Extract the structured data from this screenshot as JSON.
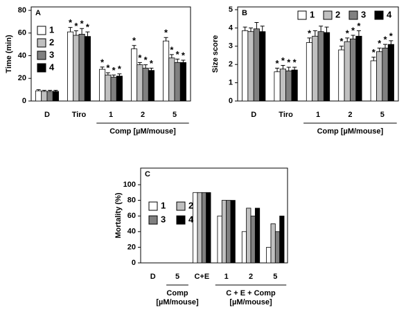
{
  "chart_data": [
    {
      "type": "bar",
      "title": "A",
      "ylabel": "Time (min)",
      "categories": [
        "D",
        "Tiro",
        "1",
        "2",
        "5"
      ],
      "group_labels": [
        [
          "Comp [µM/mouse]"
        ]
      ],
      "ylim": [
        0,
        80
      ],
      "yticks": [
        0,
        20,
        40,
        60,
        80
      ],
      "series": [
        {
          "name": "1",
          "color": "#ffffff",
          "values": [
            9,
            61,
            28,
            46,
            53
          ],
          "errors": [
            1,
            4,
            2,
            3,
            3
          ],
          "significance": [
            null,
            "*",
            "*",
            "*",
            "*"
          ]
        },
        {
          "name": "2",
          "color": "#c0c0c0",
          "values": [
            8.5,
            58,
            23,
            32,
            38
          ],
          "errors": [
            1,
            4,
            2,
            2,
            3
          ],
          "significance": [
            null,
            "*",
            "*",
            "*",
            "*"
          ]
        },
        {
          "name": "3",
          "color": "#808080",
          "values": [
            8.5,
            59,
            21,
            29,
            34
          ],
          "errors": [
            1,
            5,
            2,
            3,
            3
          ],
          "significance": [
            null,
            "*",
            "*",
            "*",
            "*"
          ]
        },
        {
          "name": "4",
          "color": "#000000",
          "values": [
            8.5,
            57,
            22,
            27,
            34
          ],
          "errors": [
            1,
            4,
            2,
            2,
            2
          ],
          "significance": [
            null,
            "*",
            "*",
            "*",
            "*"
          ]
        }
      ]
    },
    {
      "type": "bar",
      "title": "B",
      "ylabel": "Size score",
      "categories": [
        "D",
        "Tiro",
        "1",
        "2",
        "5"
      ],
      "group_labels": [
        [
          "Comp [µM/mouse]"
        ]
      ],
      "ylim": [
        0,
        5
      ],
      "yticks": [
        0,
        1,
        2,
        3,
        4,
        5
      ],
      "series": [
        {
          "name": "1",
          "color": "#ffffff",
          "values": [
            3.85,
            1.6,
            3.2,
            2.8,
            2.2
          ],
          "errors": [
            0.2,
            0.2,
            0.25,
            0.2,
            0.2
          ],
          "significance": [
            null,
            "*",
            "*",
            "*",
            "*"
          ]
        },
        {
          "name": "2",
          "color": "#c0c0c0",
          "values": [
            3.8,
            1.75,
            3.55,
            3.25,
            2.7
          ],
          "errors": [
            0.2,
            0.2,
            0.3,
            0.2,
            0.2
          ],
          "significance": [
            null,
            "*",
            null,
            "*",
            "*"
          ]
        },
        {
          "name": "3",
          "color": "#808080",
          "values": [
            3.95,
            1.65,
            3.8,
            3.4,
            2.9
          ],
          "errors": [
            0.35,
            0.2,
            0.3,
            0.2,
            0.2
          ],
          "significance": [
            null,
            "*",
            null,
            "*",
            "*"
          ]
        },
        {
          "name": "4",
          "color": "#000000",
          "values": [
            3.8,
            1.7,
            3.75,
            3.55,
            3.1
          ],
          "errors": [
            0.3,
            0.15,
            0.3,
            0.3,
            0.2
          ],
          "significance": [
            null,
            "*",
            null,
            "*",
            "*"
          ]
        }
      ]
    },
    {
      "type": "bar",
      "title": "C",
      "ylabel": "Mortality (%)",
      "categories": [
        "D",
        "5",
        "C+E",
        "1",
        "2",
        "5"
      ],
      "group_labels": [
        [
          "Comp",
          "[µM/mouse]"
        ],
        [
          "C + E + Comp",
          "[µM/mouse]"
        ]
      ],
      "ylim": [
        0,
        100
      ],
      "yticks": [
        0,
        20,
        40,
        60,
        80,
        100
      ],
      "series": [
        {
          "name": "1",
          "color": "#ffffff",
          "values": [
            0,
            0,
            90,
            60,
            40,
            20
          ]
        },
        {
          "name": "2",
          "color": "#c0c0c0",
          "values": [
            0,
            0,
            90,
            80,
            70,
            50
          ]
        },
        {
          "name": "3",
          "color": "#808080",
          "values": [
            0,
            0,
            90,
            80,
            60,
            40
          ]
        },
        {
          "name": "4",
          "color": "#000000",
          "values": [
            0,
            0,
            90,
            80,
            70,
            60
          ]
        }
      ]
    }
  ]
}
